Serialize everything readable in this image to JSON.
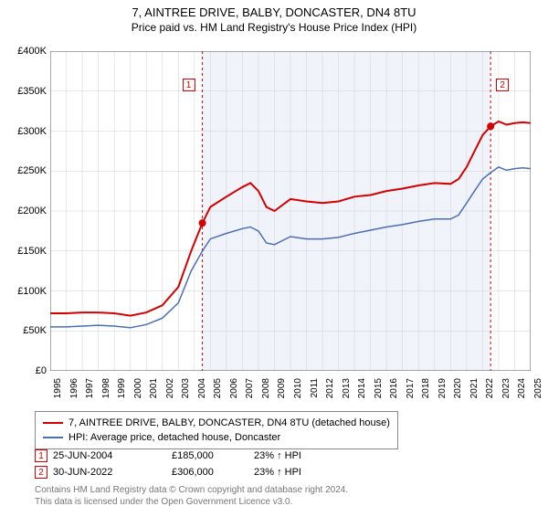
{
  "title": "7, AINTREE DRIVE, BALBY, DONCASTER, DN4 8TU",
  "subtitle": "Price paid vs. HM Land Registry's House Price Index (HPI)",
  "chart": {
    "type": "line",
    "background_color": "#ffffff",
    "shaded_region_color": "#f1f3fa",
    "grid_color": "#d0d0d0",
    "tick_color": "#555555",
    "axis_fontsize": 11,
    "y_axis": {
      "min": 0,
      "max": 400000,
      "step": 50000,
      "labels": [
        "£0",
        "£50K",
        "£100K",
        "£150K",
        "£200K",
        "£250K",
        "£300K",
        "£350K",
        "£400K"
      ]
    },
    "x_axis": {
      "years": [
        1995,
        1996,
        1997,
        1998,
        1999,
        2000,
        2001,
        2002,
        2003,
        2004,
        2005,
        2006,
        2007,
        2008,
        2009,
        2010,
        2011,
        2012,
        2013,
        2014,
        2015,
        2016,
        2017,
        2018,
        2019,
        2020,
        2021,
        2022,
        2023,
        2024,
        2025
      ]
    },
    "sale_region": {
      "start_year": 2004.5,
      "end_year": 2022.5
    },
    "series": [
      {
        "name": "7, AINTREE DRIVE, BALBY, DONCASTER, DN4 8TU (detached house)",
        "color": "#d40000",
        "line_width": 2,
        "points": [
          [
            1995,
            72000
          ],
          [
            1996,
            72000
          ],
          [
            1997,
            73000
          ],
          [
            1998,
            73000
          ],
          [
            1999,
            72000
          ],
          [
            2000,
            69000
          ],
          [
            2001,
            73000
          ],
          [
            2002,
            82000
          ],
          [
            2003,
            105000
          ],
          [
            2003.8,
            150000
          ],
          [
            2004.5,
            185000
          ],
          [
            2005,
            205000
          ],
          [
            2006,
            218000
          ],
          [
            2007,
            230000
          ],
          [
            2007.5,
            235000
          ],
          [
            2008,
            225000
          ],
          [
            2008.5,
            205000
          ],
          [
            2009,
            200000
          ],
          [
            2010,
            215000
          ],
          [
            2011,
            212000
          ],
          [
            2012,
            210000
          ],
          [
            2013,
            212000
          ],
          [
            2014,
            218000
          ],
          [
            2015,
            220000
          ],
          [
            2016,
            225000
          ],
          [
            2017,
            228000
          ],
          [
            2018,
            232000
          ],
          [
            2019,
            235000
          ],
          [
            2020,
            234000
          ],
          [
            2020.5,
            240000
          ],
          [
            2021,
            255000
          ],
          [
            2021.5,
            275000
          ],
          [
            2022,
            295000
          ],
          [
            2022.5,
            306000
          ],
          [
            2023,
            312000
          ],
          [
            2023.5,
            308000
          ],
          [
            2024,
            310000
          ],
          [
            2024.5,
            311000
          ],
          [
            2025,
            310000
          ]
        ]
      },
      {
        "name": "HPI: Average price, detached house, Doncaster",
        "color": "#4a6fb5",
        "line_width": 1.5,
        "points": [
          [
            1995,
            55000
          ],
          [
            1996,
            55000
          ],
          [
            1997,
            56000
          ],
          [
            1998,
            57000
          ],
          [
            1999,
            56000
          ],
          [
            2000,
            54000
          ],
          [
            2001,
            58000
          ],
          [
            2002,
            66000
          ],
          [
            2003,
            85000
          ],
          [
            2003.8,
            125000
          ],
          [
            2004.5,
            150000
          ],
          [
            2005,
            165000
          ],
          [
            2006,
            172000
          ],
          [
            2007,
            178000
          ],
          [
            2007.5,
            180000
          ],
          [
            2008,
            175000
          ],
          [
            2008.5,
            160000
          ],
          [
            2009,
            158000
          ],
          [
            2010,
            168000
          ],
          [
            2011,
            165000
          ],
          [
            2012,
            165000
          ],
          [
            2013,
            167000
          ],
          [
            2014,
            172000
          ],
          [
            2015,
            176000
          ],
          [
            2016,
            180000
          ],
          [
            2017,
            183000
          ],
          [
            2018,
            187000
          ],
          [
            2019,
            190000
          ],
          [
            2020,
            190000
          ],
          [
            2020.5,
            195000
          ],
          [
            2021,
            210000
          ],
          [
            2021.5,
            225000
          ],
          [
            2022,
            240000
          ],
          [
            2022.5,
            248000
          ],
          [
            2023,
            255000
          ],
          [
            2023.5,
            251000
          ],
          [
            2024,
            253000
          ],
          [
            2024.5,
            254000
          ],
          [
            2025,
            253000
          ]
        ]
      }
    ],
    "sale_markers": [
      {
        "id": "1",
        "year": 2004.5,
        "price": 185000,
        "color": "#d40000",
        "vline_color": "#d40000"
      },
      {
        "id": "2",
        "year": 2022.5,
        "price": 306000,
        "color": "#d40000",
        "vline_color": "#d40000"
      }
    ],
    "sale_dot_radius": 4
  },
  "legend": {
    "series1_label": "7, AINTREE DRIVE, BALBY, DONCASTER, DN4 8TU (detached house)",
    "series2_label": "HPI: Average price, detached house, Doncaster"
  },
  "sales": [
    {
      "marker": "1",
      "date": "25-JUN-2004",
      "price": "£185,000",
      "diff": "23% ↑ HPI"
    },
    {
      "marker": "2",
      "date": "30-JUN-2022",
      "price": "£306,000",
      "diff": "23% ↑ HPI"
    }
  ],
  "footer": {
    "line1": "Contains HM Land Registry data © Crown copyright and database right 2024.",
    "line2": "This data is licensed under the Open Government Licence v3.0."
  }
}
